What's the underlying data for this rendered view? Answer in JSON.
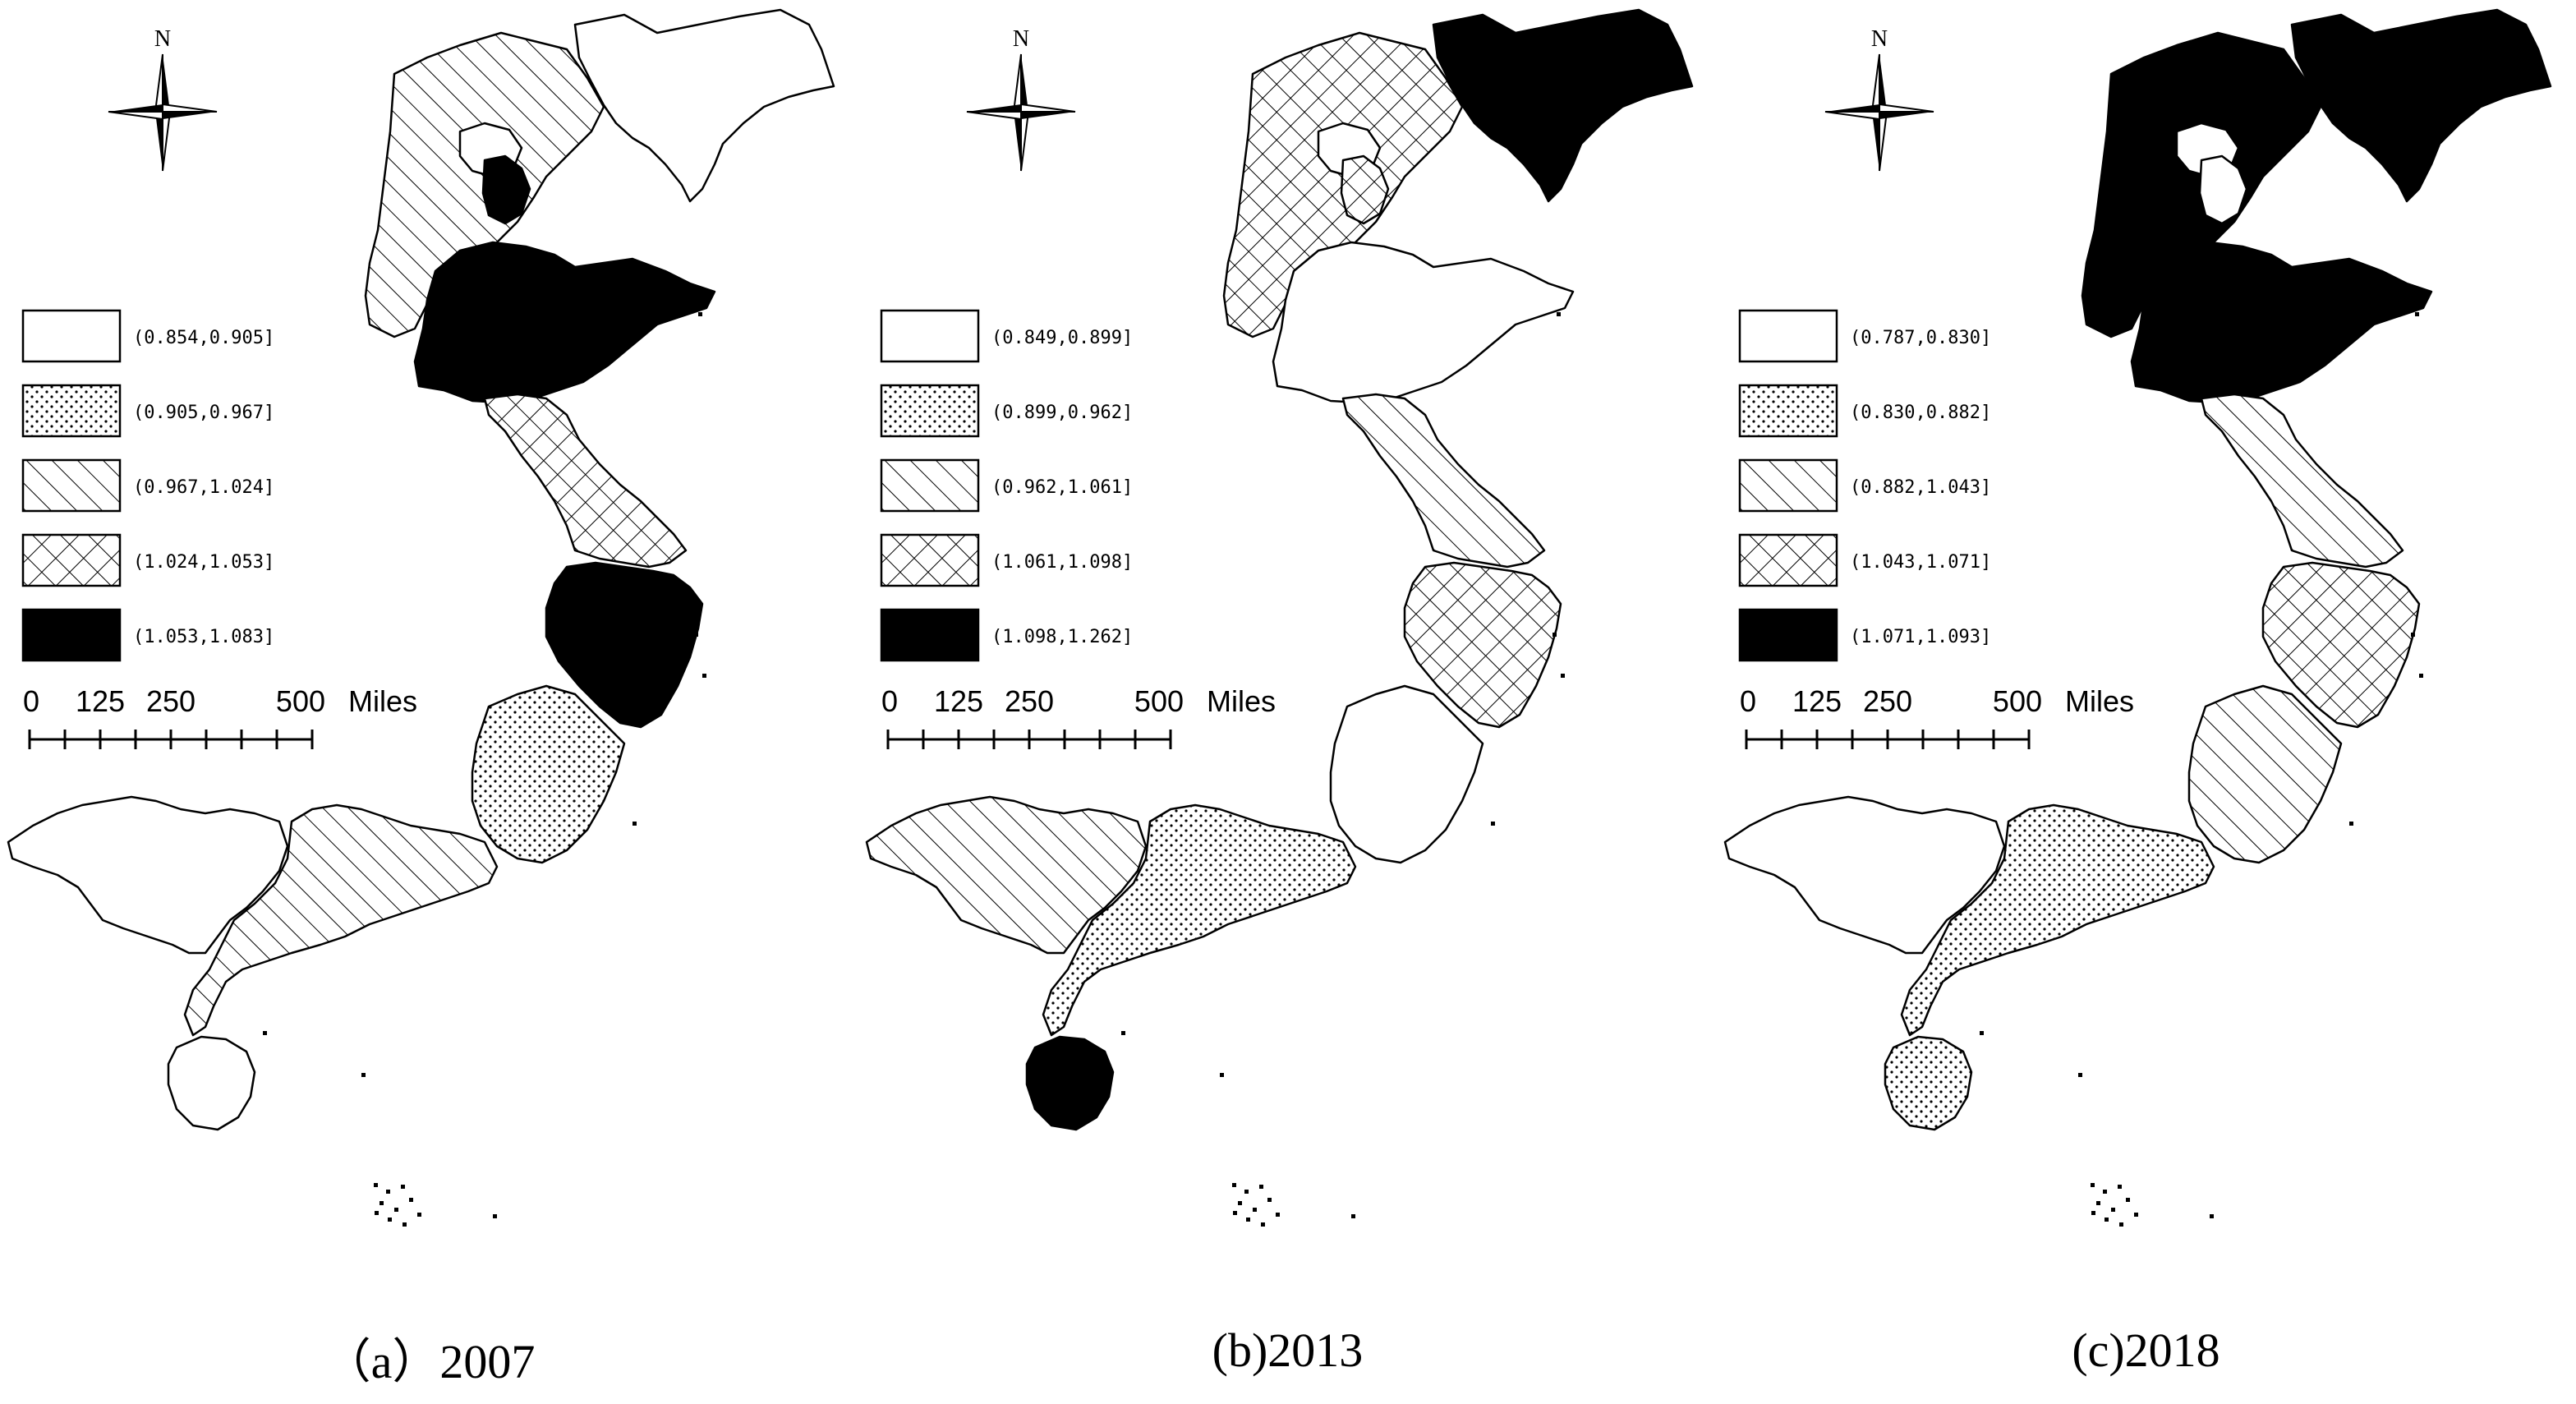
{
  "compass": {
    "north_label": "N"
  },
  "scale_bar": {
    "ticks": [
      "0",
      "125",
      "250",
      "500"
    ],
    "unit": "Miles"
  },
  "panels": [
    {
      "caption": "（a）2007",
      "legend": [
        {
          "label": "(0.854,0.905]",
          "pattern": "blank"
        },
        {
          "label": "(0.905,0.967]",
          "pattern": "dots"
        },
        {
          "label": "(0.967,1.024]",
          "pattern": "hatch"
        },
        {
          "label": "(1.024,1.053]",
          "pattern": "cross"
        },
        {
          "label": "(1.053,1.083]",
          "pattern": "solid"
        }
      ],
      "regions": {
        "north_plain": "hatch",
        "liaoning": "blank",
        "beijing": "blank",
        "tianjin": "solid",
        "shandong": "solid",
        "jiangsu": "cross",
        "zhejiang": "solid",
        "fujian": "dots",
        "guangdong": "hatch",
        "guangxi": "blank",
        "hainan": "blank"
      }
    },
    {
      "caption": "(b)2013",
      "legend": [
        {
          "label": "(0.849,0.899]",
          "pattern": "blank"
        },
        {
          "label": "(0.899,0.962]",
          "pattern": "dots"
        },
        {
          "label": "(0.962,1.061]",
          "pattern": "hatch"
        },
        {
          "label": "(1.061,1.098]",
          "pattern": "cross"
        },
        {
          "label": "(1.098,1.262]",
          "pattern": "solid"
        }
      ],
      "regions": {
        "north_plain": "cross",
        "liaoning": "solid",
        "beijing": "blank",
        "tianjin": "cross",
        "shandong": "blank",
        "jiangsu": "hatch",
        "zhejiang": "cross",
        "fujian": "blank",
        "guangdong": "dots",
        "guangxi": "hatch",
        "hainan": "solid"
      }
    },
    {
      "caption": "(c)2018",
      "legend": [
        {
          "label": "(0.787,0.830]",
          "pattern": "blank"
        },
        {
          "label": "(0.830,0.882]",
          "pattern": "dots"
        },
        {
          "label": "(0.882,1.043]",
          "pattern": "hatch"
        },
        {
          "label": "(1.043,1.071]",
          "pattern": "cross"
        },
        {
          "label": "(1.071,1.093]",
          "pattern": "solid"
        }
      ],
      "regions": {
        "north_plain": "solid",
        "liaoning": "solid",
        "beijing": "blank",
        "tianjin": "blank",
        "shandong": "solid",
        "jiangsu": "hatch",
        "zhejiang": "cross",
        "fujian": "hatch",
        "guangdong": "dots",
        "guangxi": "blank",
        "hainan": "dots"
      }
    }
  ]
}
